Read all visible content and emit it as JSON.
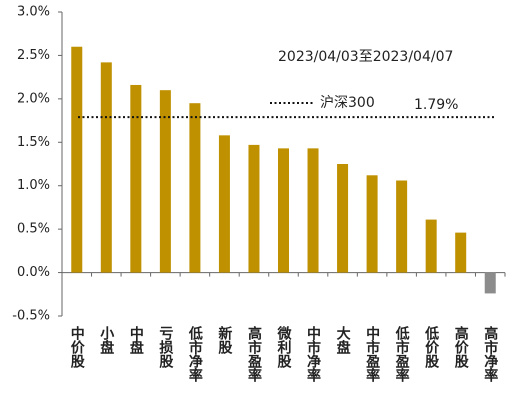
{
  "chart_data": {
    "type": "bar",
    "annotation": "2023/04/03至2023/04/07",
    "categories": [
      "中价股",
      "小盘",
      "中盘",
      "亏损股",
      "低市净率",
      "新股",
      "高市盈率",
      "微利股",
      "中市净率",
      "大盘",
      "中市盈率",
      "低市盈率",
      "低价股",
      "高价股",
      "高市净率"
    ],
    "values": [
      2.6,
      2.42,
      2.16,
      2.1,
      1.95,
      1.58,
      1.47,
      1.43,
      1.43,
      1.25,
      1.12,
      1.06,
      0.61,
      0.46,
      -0.24
    ],
    "colors": [
      "#bf9000",
      "#bf9000",
      "#bf9000",
      "#bf9000",
      "#bf9000",
      "#bf9000",
      "#bf9000",
      "#bf9000",
      "#bf9000",
      "#bf9000",
      "#bf9000",
      "#bf9000",
      "#bf9000",
      "#bf9000",
      "#8c8c8c"
    ],
    "reference": {
      "name": "沪深300",
      "value": 1.79,
      "label": "1.79%",
      "color": "#8b6d00"
    },
    "ylim": [
      -0.5,
      3.0
    ],
    "yticks": [
      {
        "value": -0.5,
        "label": "-0.5%"
      },
      {
        "value": 0,
        "label": "0.0%"
      },
      {
        "value": 0.5,
        "label": "0.5%"
      },
      {
        "value": 1.0,
        "label": "1.0%"
      },
      {
        "value": 1.5,
        "label": "1.5%"
      },
      {
        "value": 2.0,
        "label": "2.0%"
      },
      {
        "value": 2.5,
        "label": "2.5%"
      },
      {
        "value": 3.0,
        "label": "3.0%"
      }
    ]
  }
}
